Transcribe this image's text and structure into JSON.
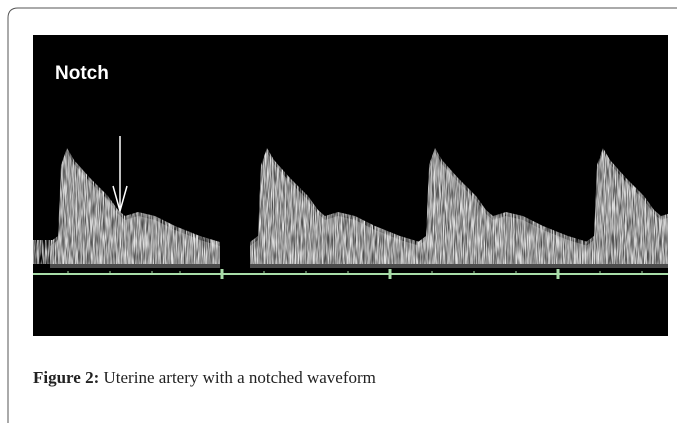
{
  "figure": {
    "image_label": "Notch",
    "caption": {
      "label": "Figure 2:",
      "text": "Uterine artery with a notched waveform"
    }
  }
}
